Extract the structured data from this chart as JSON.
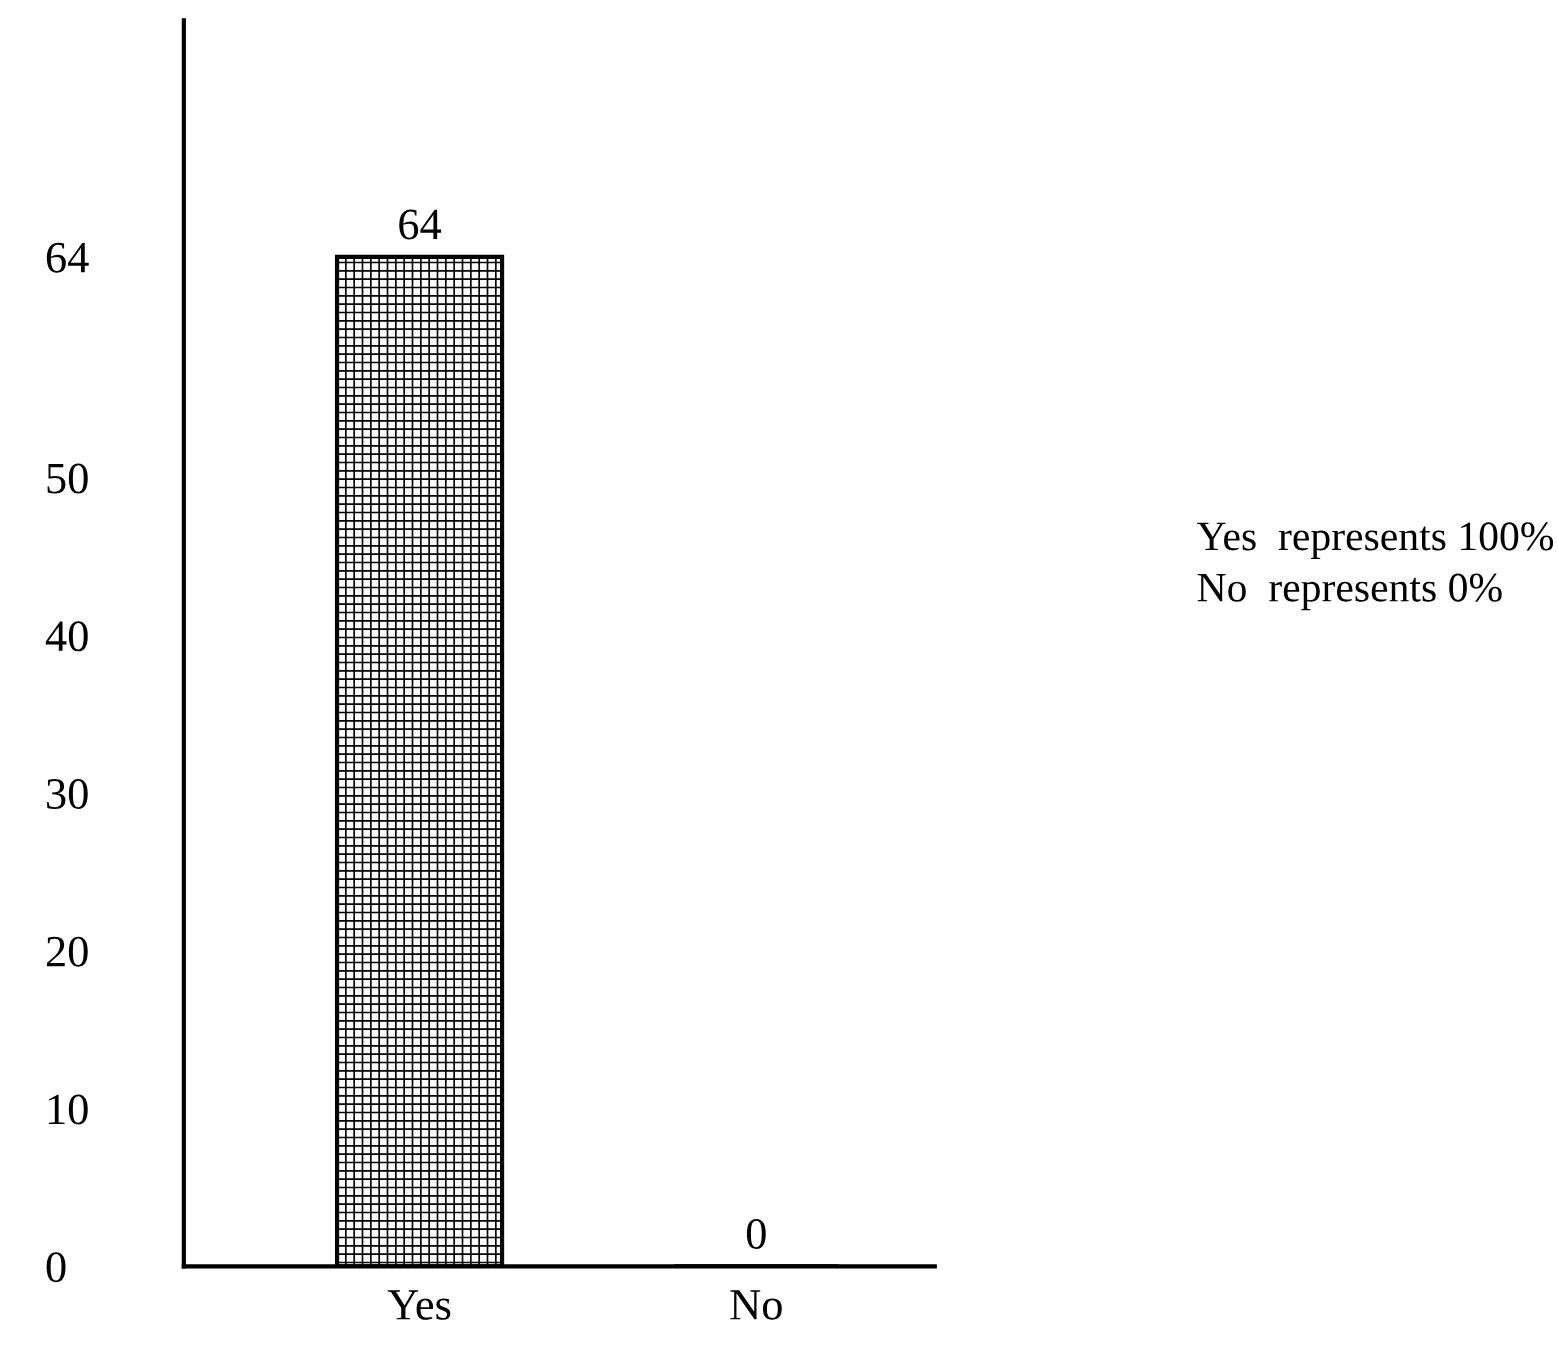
{
  "chart_data": {
    "type": "bar",
    "categories": [
      "Yes",
      "No"
    ],
    "values": [
      64,
      0
    ],
    "color": "#000000",
    "ylim": [
      0,
      79
    ],
    "yticks": [
      0,
      10,
      20,
      30,
      40,
      50,
      64
    ],
    "grid": false,
    "data_labels": true,
    "annotations": [
      "Yes  represents 100%",
      "No  represents 0%"
    ]
  }
}
